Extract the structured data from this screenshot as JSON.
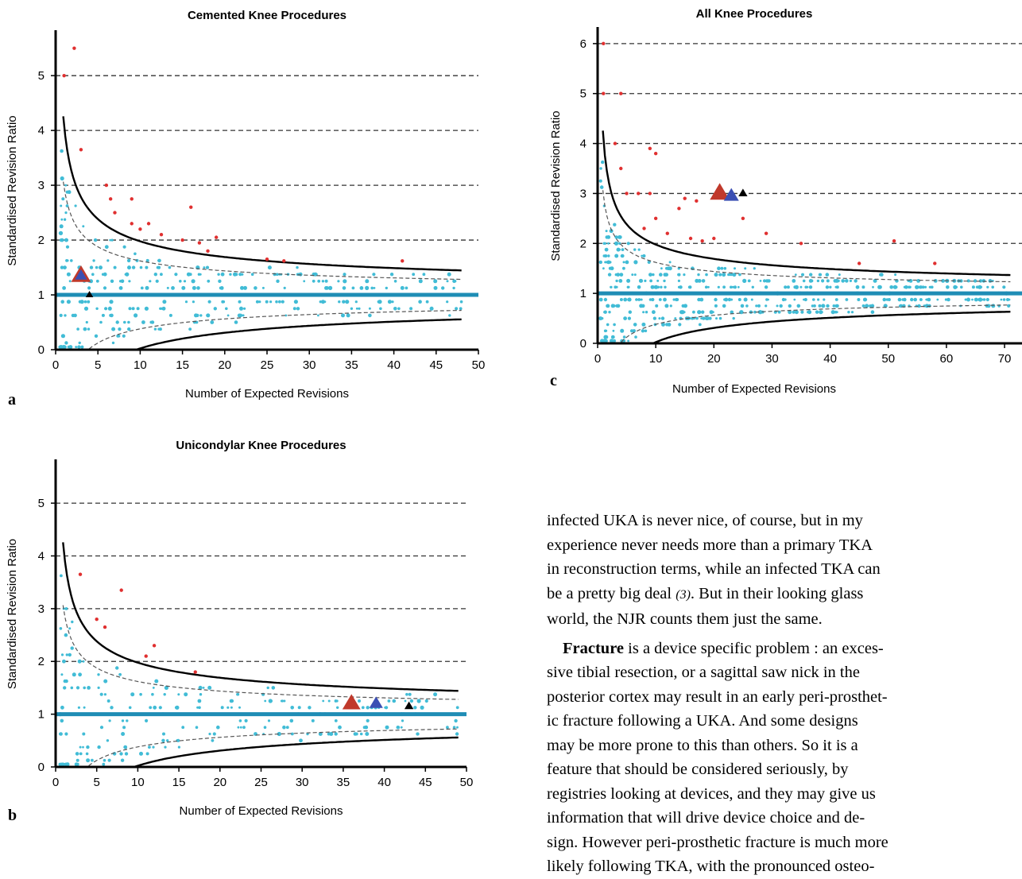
{
  "charts": [
    {
      "id": "a",
      "letter": "a",
      "chart_data": {
        "type": "scatter",
        "title": "Cemented Knee Procedures",
        "xlabel": "Number of Expected Revisions",
        "ylabel": "Standardised Revision Ratio",
        "xlim": [
          0,
          50
        ],
        "ylim": [
          0,
          5.8
        ],
        "xticks": [
          0,
          5,
          10,
          15,
          20,
          25,
          30,
          35,
          40,
          45,
          50
        ],
        "yticks": [
          0,
          1,
          2,
          3,
          4,
          5
        ],
        "seed": 11,
        "n_points": 360,
        "xmax_points": 48,
        "red_points": [
          [
            2.2,
            5.5
          ],
          [
            1,
            5
          ],
          [
            3,
            3.65
          ],
          [
            6,
            3
          ],
          [
            6.5,
            2.75
          ],
          [
            9,
            2.75
          ],
          [
            16,
            2.6
          ],
          [
            7,
            2.5
          ],
          [
            9,
            2.3
          ],
          [
            10,
            2.2
          ],
          [
            11,
            2.3
          ],
          [
            12.5,
            2.1
          ],
          [
            15,
            2
          ],
          [
            17,
            1.95
          ],
          [
            19,
            2.05
          ],
          [
            18,
            1.8
          ],
          [
            25,
            1.65
          ],
          [
            27,
            1.62
          ],
          [
            41,
            1.62
          ]
        ],
        "triangles": [
          {
            "x": 3,
            "y": 1.35,
            "color": "#c0392b",
            "size": 13
          },
          {
            "x": 3,
            "y": 1.35,
            "color": "#3b4fb3",
            "size": 8
          },
          {
            "x": 4,
            "y": 1.0,
            "color": "#000000",
            "size": 5
          }
        ],
        "grid": "dashed-horizontal"
      }
    },
    {
      "id": "b",
      "letter": "b",
      "chart_data": {
        "type": "scatter",
        "title": "Unicondylar Knee Procedures",
        "xlabel": "Number of Expected Revisions",
        "ylabel": "Standardised Revision Ratio",
        "xlim": [
          0,
          50
        ],
        "ylim": [
          0,
          5.8
        ],
        "xticks": [
          0,
          5,
          10,
          15,
          20,
          25,
          30,
          35,
          40,
          45,
          50
        ],
        "yticks": [
          0,
          1,
          2,
          3,
          4,
          5
        ],
        "seed": 23,
        "n_points": 230,
        "xmax_points": 49,
        "red_points": [
          [
            3,
            3.65
          ],
          [
            8,
            3.35
          ],
          [
            5,
            2.8
          ],
          [
            6,
            2.65
          ],
          [
            12,
            2.3
          ],
          [
            11,
            2.1
          ],
          [
            17,
            1.8
          ]
        ],
        "triangles": [
          {
            "x": 36,
            "y": 1.2,
            "color": "#c0392b",
            "size": 12
          },
          {
            "x": 39,
            "y": 1.2,
            "color": "#3b4fb3",
            "size": 9
          },
          {
            "x": 43,
            "y": 1.15,
            "color": "#000000",
            "size": 6
          }
        ],
        "grid": "dashed-horizontal"
      }
    },
    {
      "id": "c",
      "letter": "c",
      "chart_data": {
        "type": "scatter",
        "title": "All Knee Procedures",
        "xlabel": "Number of Expected Revisions",
        "ylabel": "Standardised Revision Ratio",
        "xlim": [
          0,
          73
        ],
        "ylim": [
          0,
          6.3
        ],
        "xticks": [
          0,
          10,
          20,
          30,
          40,
          50,
          60,
          70
        ],
        "yticks": [
          0,
          1,
          2,
          3,
          4,
          5,
          6
        ],
        "seed": 37,
        "n_points": 520,
        "xmax_points": 71,
        "red_points": [
          [
            1,
            6
          ],
          [
            1,
            5
          ],
          [
            4,
            5
          ],
          [
            3,
            4
          ],
          [
            9,
            3.9
          ],
          [
            10,
            3.8
          ],
          [
            4,
            3.5
          ],
          [
            5,
            3
          ],
          [
            7,
            3
          ],
          [
            9,
            3
          ],
          [
            15,
            2.9
          ],
          [
            17,
            2.85
          ],
          [
            14,
            2.7
          ],
          [
            25,
            2.5
          ],
          [
            10,
            2.5
          ],
          [
            8,
            2.3
          ],
          [
            12,
            2.2
          ],
          [
            16,
            2.1
          ],
          [
            18,
            2.05
          ],
          [
            20,
            2.1
          ],
          [
            29,
            2.2
          ],
          [
            35,
            2
          ],
          [
            51,
            2.05
          ],
          [
            58,
            1.6
          ],
          [
            45,
            1.6
          ]
        ],
        "triangles": [
          {
            "x": 21,
            "y": 3.0,
            "color": "#c0392b",
            "size": 13
          },
          {
            "x": 23,
            "y": 2.95,
            "color": "#3b4fb3",
            "size": 10
          },
          {
            "x": 25,
            "y": 3.0,
            "color": "#000000",
            "size": 6
          }
        ],
        "grid": "dashed-horizontal"
      }
    }
  ],
  "text": {
    "p1_l1": "infected UKA is never nice, of course, but in my",
    "p1_l2": "experience never needs more than a primary TKA",
    "p1_l3": "in reconstruction terms, while an infected TKA can",
    "p1_l4a": "be a pretty big deal",
    "p1_l4ref": "(3)",
    "p1_l4b": ". But in their looking glass",
    "p1_l5": "world, the NJR counts them just the same.",
    "p2_bold": "Fracture",
    "p2_l1": " is a device specific problem : an exces-",
    "p2_l2": "sive tibial resection, or a sagittal saw nick in the",
    "p2_l3": "posterior cortex may result in an early peri-prosthet-",
    "p2_l4": "ic fracture following a UKA. And some designs",
    "p2_l5": "may be more prone to this than others. So it is a",
    "p2_l6": "feature that should be considered seriously, by",
    "p2_l7": "registries looking at devices, and they may give us",
    "p2_l8": "information that will drive device choice and de-",
    "p2_l9": "sign. However peri-prosthetic fracture is much more",
    "p2_l10": "likely following TKA, with the pronounced osteo-"
  },
  "colors": {
    "dots": "#41bcd6",
    "red": "#e03030",
    "refline": "#1f8db5"
  }
}
